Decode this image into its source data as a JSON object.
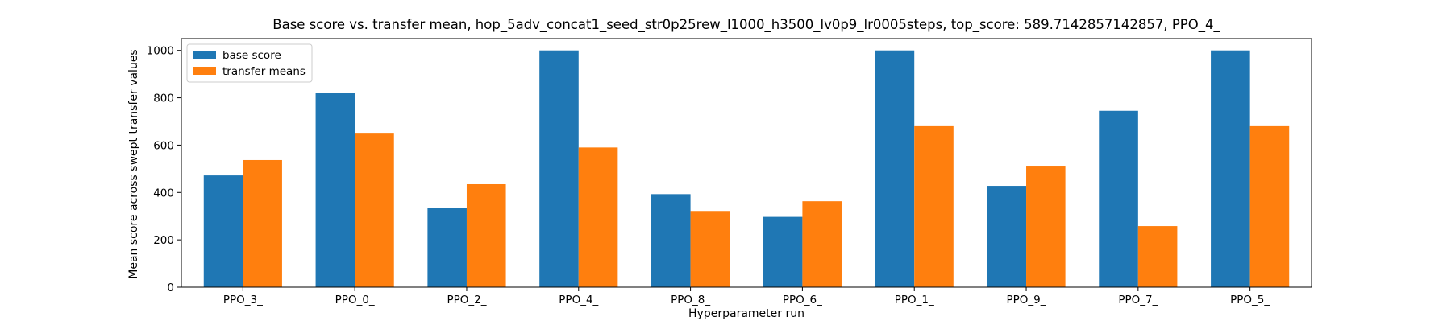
{
  "chart_data": {
    "type": "bar",
    "title": "Base score vs. transfer mean, hop_5adv_concat1_seed_str0p25rew_l1000_h3500_lv0p9_lr0005steps, top_score: 589.7142857142857, PPO_4_",
    "xlabel": "Hyperparameter run",
    "ylabel": "Mean score across swept transfer values",
    "categories": [
      "PPO_3_",
      "PPO_0_",
      "PPO_2_",
      "PPO_4_",
      "PPO_8_",
      "PPO_6_",
      "PPO_1_",
      "PPO_9_",
      "PPO_7_",
      "PPO_5_"
    ],
    "series": [
      {
        "name": "base score",
        "color": "#1f77b4",
        "values": [
          472,
          820,
          333,
          1000,
          393,
          297,
          1000,
          428,
          745,
          1000
        ]
      },
      {
        "name": "transfer means",
        "color": "#ff7f0e",
        "values": [
          537,
          652,
          435,
          590,
          322,
          363,
          680,
          513,
          258,
          680
        ]
      }
    ],
    "ylim": [
      0,
      1050
    ],
    "yticks": [
      0,
      200,
      400,
      600,
      800,
      1000
    ],
    "grid": false,
    "legend_position": "top-left"
  }
}
